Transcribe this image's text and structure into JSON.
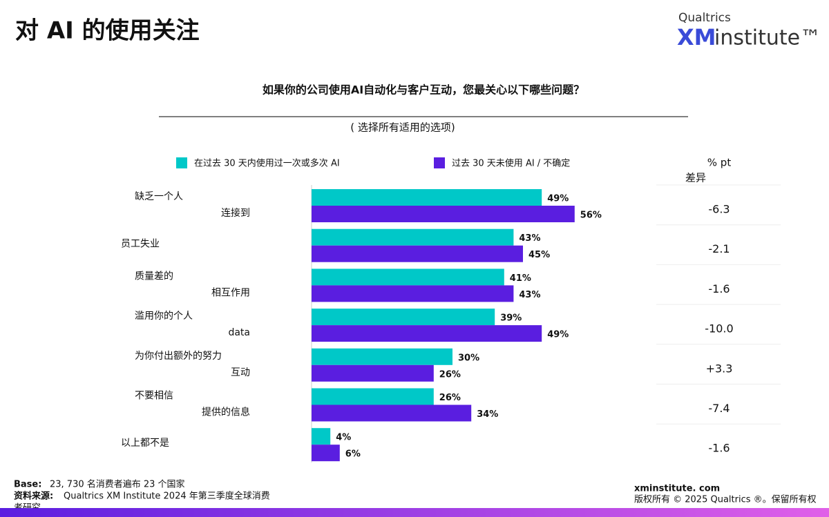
{
  "header": {
    "title": "对 AI 的使用关注",
    "logo_top": "Qualtrics",
    "logo_xm": "XM",
    "logo_rest": "institute™"
  },
  "chart_data": {
    "type": "bar",
    "orientation": "horizontal",
    "title": "如果你的公司使用AI自动化与客户互动，您最关心以下哪些问题？",
    "subtitle": "( 选择所有适用的选项)",
    "categories": [
      [
        "缺乏一个人",
        "连接到"
      ],
      [
        "员工失业"
      ],
      [
        "质量差的",
        "相互作用"
      ],
      [
        "滥用你的个人",
        "data"
      ],
      [
        "为你付出额外的努力",
        "互动"
      ],
      [
        "不要相信",
        "提供的信息"
      ],
      [
        "以上都不是"
      ]
    ],
    "series": [
      {
        "name": "在过去 30 天内使用过一次或多次 AI",
        "color": "#00c8c8",
        "values": [
          49,
          43,
          41,
          39,
          30,
          26,
          4
        ],
        "value_labels": [
          "49%",
          "43%",
          "41%",
          "39%",
          "30%",
          "26%",
          "4%"
        ]
      },
      {
        "name": "过去 30 天未使用 AI / 不确定",
        "color": "#5a1ee0",
        "values": [
          56,
          45,
          43,
          49,
          26,
          34,
          6
        ],
        "value_labels": [
          "56%",
          "45%",
          "43%",
          "49%",
          "26%",
          "34%",
          "6%"
        ]
      }
    ],
    "difference": {
      "title": [
        "% pt",
        "差异"
      ],
      "values": [
        -6.3,
        -2.1,
        -1.6,
        -10.0,
        3.3,
        -7.4,
        -1.6
      ],
      "value_labels": [
        "-6.3",
        "-2.1",
        "-1.6",
        "-10.0",
        "+3.3",
        "-7.4",
        "-1.6"
      ]
    }
  },
  "footer": {
    "base_label": "Base:",
    "base_text": "23, 730 名消费者遍布 23 个国家",
    "source_label": "资料来源:",
    "source_text_1": "Qualtrics XM Institute 2024 年第三季度全球消费",
    "source_text_2": "者研究",
    "site": "xminstitute. com",
    "copyright": "版权所有 © 2025 Qualtrics ®。保留所有权"
  }
}
